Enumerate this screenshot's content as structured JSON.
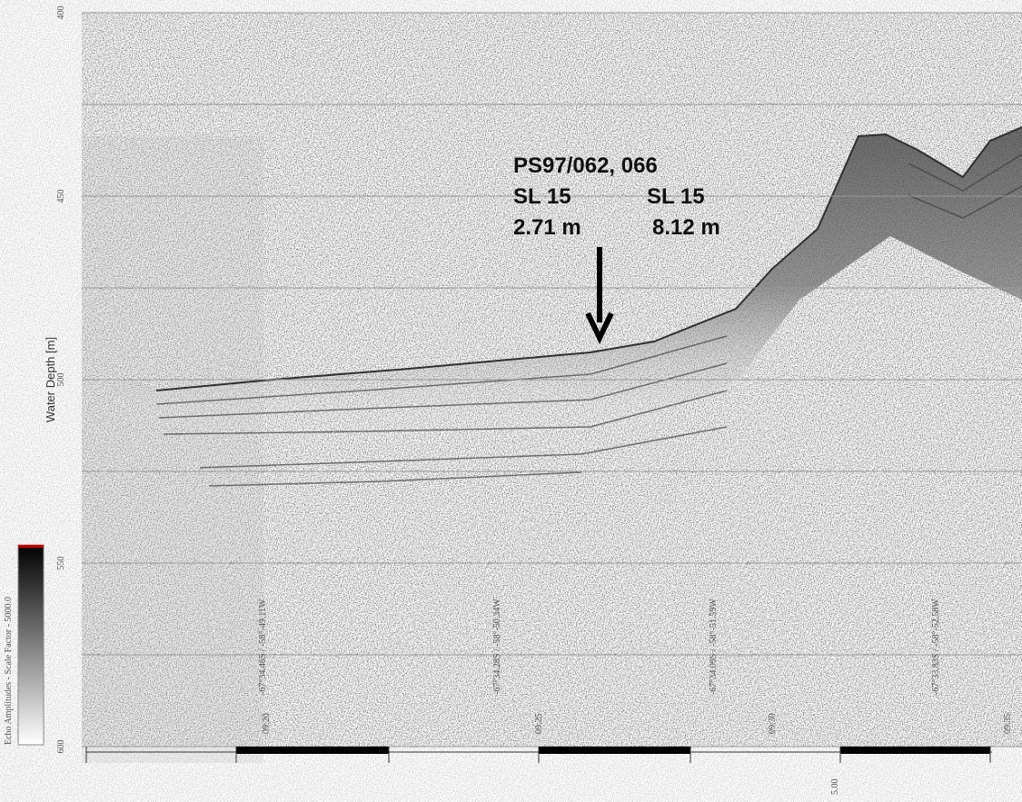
{
  "chart_data": {
    "type": "echogram",
    "y_label": "Water Depth [m]",
    "ylim": [
      600,
      400
    ],
    "yticks": [
      400,
      {
        "value": 425,
        "label": null
      },
      450,
      {
        "value": 475,
        "label": null
      },
      500,
      {
        "value": 525,
        "label": null
      },
      550,
      {
        "value": 575,
        "label": null
      },
      600
    ],
    "grid": true,
    "colorbar_label": "Echo Amplitudes - Scale Factor - 5000.0",
    "annotations": {
      "station": "PS97/062, 066",
      "core_left": "SL 15",
      "core_right": "SL 15",
      "length_left": "2.71 m",
      "length_right": "8.12 m"
    },
    "positions": [
      "-67°34.46S / -58°-49.11W",
      "-67°34.28S / -58°-50.34W",
      "-67°34.09S / -58°-51.59W",
      "-67°33.83S / -58°-52.58W"
    ],
    "times": [
      "09:20",
      "09:25",
      "09:30",
      "09:35"
    ],
    "scale_label": "5.00"
  }
}
